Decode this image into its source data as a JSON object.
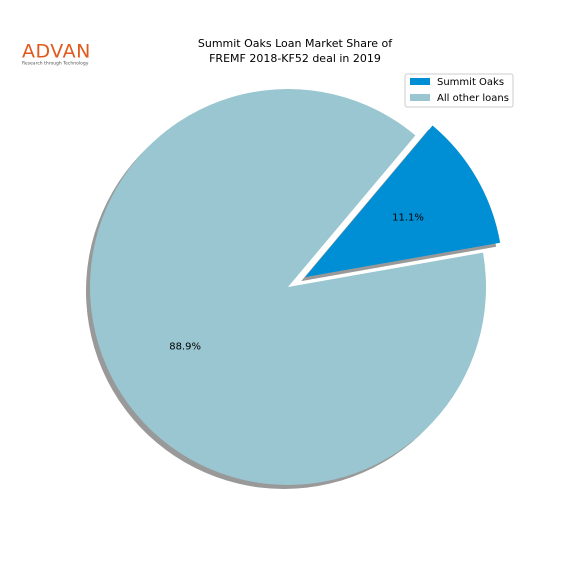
{
  "logo": {
    "name": "ADVAN",
    "tagline": "Research through Technology"
  },
  "chart_data": {
    "type": "pie",
    "title": [
      "Summit Oaks Loan Market Share of",
      "FREMF 2018-KF52 deal in 2019"
    ],
    "categories": [
      "Summit Oaks",
      "All other loans"
    ],
    "values": [
      11.1,
      88.9
    ],
    "value_labels": [
      "11.1%",
      "88.9%"
    ],
    "colors": [
      "#008fd5",
      "#99c6d0"
    ],
    "legend": "upper right",
    "shadow": true
  }
}
